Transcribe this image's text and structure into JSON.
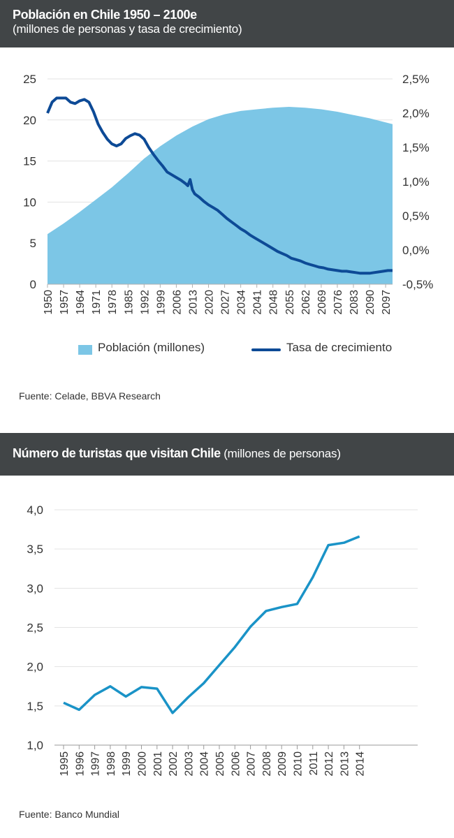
{
  "chart1": {
    "title": "Población en Chile 1950 – 2100e",
    "subtitle": "(millones de personas y tasa de crecimiento)",
    "source": "Fuente: Celade, BBVA Research",
    "legend": {
      "area": "Población (millones)",
      "line": "Tasa de crecimiento"
    },
    "colors": {
      "area": "#7cc6e6",
      "line": "#0d4a96"
    }
  },
  "chart2": {
    "title": "Número de turistas que visitan Chile",
    "title_suffix": " (millones de personas)",
    "source": "Fuente: Banco Mundial",
    "colors": {
      "line": "#1a93c7"
    }
  },
  "chart_data": [
    {
      "type": "area",
      "title": "Población en Chile 1950 – 2100e",
      "subtitle": "(millones de personas y tasa de crecimiento)",
      "x_ticks": [
        "1950",
        "1957",
        "1964",
        "1971",
        "1978",
        "1985",
        "1992",
        "1999",
        "2006",
        "2013",
        "2020",
        "2027",
        "2034",
        "2041",
        "2048",
        "2055",
        "2062",
        "2069",
        "2076",
        "2083",
        "2090",
        "2097"
      ],
      "xlim": [
        1950,
        2100
      ],
      "ylim": [
        0,
        25
      ],
      "y_ticks": [
        "0",
        "5",
        "10",
        "15",
        "20",
        "25"
      ],
      "y2lim": [
        -0.5,
        2.5
      ],
      "y2_ticks": [
        "-0,5%",
        "0,0%",
        "0,5%",
        "1,0%",
        "1,5%",
        "2,0%",
        "2,5%"
      ],
      "grid": true,
      "legend_position": "bottom",
      "series": [
        {
          "name": "Población (millones)",
          "axis": "left",
          "type": "area",
          "x": [
            1950,
            1957,
            1964,
            1971,
            1978,
            1985,
            1992,
            1999,
            2006,
            2013,
            2020,
            2027,
            2034,
            2041,
            2048,
            2055,
            2062,
            2069,
            2076,
            2083,
            2090,
            2097,
            2100
          ],
          "values": [
            6.1,
            7.4,
            8.8,
            10.3,
            11.8,
            13.5,
            15.3,
            16.8,
            18.1,
            19.2,
            20.1,
            20.7,
            21.1,
            21.3,
            21.5,
            21.6,
            21.5,
            21.3,
            21.0,
            20.6,
            20.2,
            19.7,
            19.5
          ]
        },
        {
          "name": "Tasa de crecimiento",
          "axis": "right",
          "type": "line",
          "x": [
            1950,
            1952,
            1954,
            1956,
            1958,
            1960,
            1962,
            1964,
            1966,
            1968,
            1970,
            1972,
            1974,
            1976,
            1978,
            1980,
            1982,
            1984,
            1986,
            1988,
            1990,
            1992,
            1994,
            1996,
            1998,
            2000,
            2002,
            2004,
            2006,
            2008,
            2010,
            2011,
            2012,
            2013,
            2014,
            2016,
            2018,
            2020,
            2022,
            2024,
            2026,
            2028,
            2030,
            2032,
            2034,
            2036,
            2038,
            2040,
            2042,
            2044,
            2046,
            2048,
            2050,
            2052,
            2054,
            2056,
            2058,
            2060,
            2062,
            2064,
            2066,
            2068,
            2070,
            2072,
            2074,
            2076,
            2078,
            2080,
            2082,
            2084,
            2086,
            2088,
            2090,
            2092,
            2094,
            2096,
            2098,
            2100
          ],
          "values": [
            2.0,
            2.16,
            2.22,
            2.22,
            2.22,
            2.16,
            2.14,
            2.18,
            2.2,
            2.16,
            2.02,
            1.84,
            1.72,
            1.62,
            1.55,
            1.52,
            1.55,
            1.63,
            1.67,
            1.7,
            1.68,
            1.62,
            1.5,
            1.4,
            1.31,
            1.23,
            1.14,
            1.1,
            1.06,
            1.02,
            0.97,
            0.94,
            1.03,
            0.88,
            0.82,
            0.77,
            0.71,
            0.66,
            0.62,
            0.58,
            0.52,
            0.46,
            0.41,
            0.36,
            0.31,
            0.27,
            0.22,
            0.18,
            0.14,
            0.1,
            0.06,
            0.02,
            -0.02,
            -0.05,
            -0.08,
            -0.12,
            -0.14,
            -0.16,
            -0.19,
            -0.21,
            -0.23,
            -0.25,
            -0.26,
            -0.28,
            -0.29,
            -0.3,
            -0.31,
            -0.31,
            -0.32,
            -0.33,
            -0.34,
            -0.34,
            -0.34,
            -0.33,
            -0.32,
            -0.31,
            -0.3,
            -0.3
          ]
        }
      ]
    },
    {
      "type": "line",
      "title": "Número de turistas que visitan Chile",
      "subtitle": "(millones de personas)",
      "categories": [
        "1995",
        "1996",
        "1997",
        "1998",
        "1999",
        "2000",
        "2001",
        "2002",
        "2003",
        "2004",
        "2005",
        "2006",
        "2007",
        "2008",
        "2009",
        "2010",
        "2011",
        "2012",
        "2013",
        "2014"
      ],
      "ylim": [
        1.0,
        4.0
      ],
      "y_ticks": [
        "1,0",
        "1,5",
        "2,0",
        "2,5",
        "3,0",
        "3,5",
        "4,0"
      ],
      "grid": true,
      "series": [
        {
          "name": "",
          "values": [
            1.54,
            1.45,
            1.64,
            1.75,
            1.62,
            1.74,
            1.72,
            1.41,
            1.61,
            1.79,
            2.02,
            2.25,
            2.51,
            2.71,
            2.76,
            2.8,
            3.14,
            3.55,
            3.58,
            3.66
          ]
        }
      ]
    }
  ]
}
